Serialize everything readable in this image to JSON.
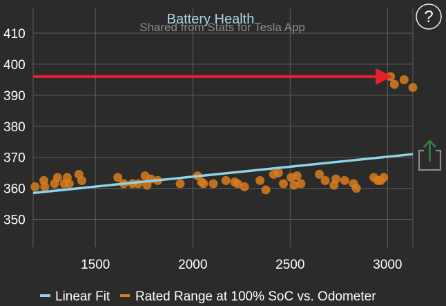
{
  "chart_data": {
    "type": "scatter",
    "title": "Battery Health",
    "subtitle": "Shared from Stats for Tesla App",
    "xlim": [
      1180,
      3130
    ],
    "ylim": [
      341,
      418
    ],
    "x_ticks": [
      1500,
      2000,
      2500,
      3000
    ],
    "y_ticks": [
      350,
      360,
      370,
      380,
      390,
      400,
      410
    ],
    "grid": true,
    "legend_position": "bottom",
    "series": [
      {
        "name": "Linear Fit",
        "type": "line",
        "color": "#8fd3e6",
        "x": [
          1180,
          3130
        ],
        "y": [
          358.5,
          371
        ]
      },
      {
        "name": "Rated Range at 100% SoC vs. Odometer",
        "type": "scatter",
        "color": "#d97d1c",
        "points": [
          [
            1190,
            360.5
          ],
          [
            1235,
            362.5
          ],
          [
            1240,
            360.5
          ],
          [
            1290,
            361.5
          ],
          [
            1305,
            363.5
          ],
          [
            1340,
            361.5
          ],
          [
            1355,
            363.5
          ],
          [
            1365,
            361.5
          ],
          [
            1415,
            364.5
          ],
          [
            1430,
            362.5
          ],
          [
            1615,
            363.5
          ],
          [
            1645,
            361.5
          ],
          [
            1690,
            361.5
          ],
          [
            1720,
            361.5
          ],
          [
            1755,
            364.0
          ],
          [
            1765,
            361.0
          ],
          [
            1785,
            363.0
          ],
          [
            1820,
            362.5
          ],
          [
            1935,
            361.5
          ],
          [
            2025,
            364.0
          ],
          [
            2045,
            362.0
          ],
          [
            2055,
            361.5
          ],
          [
            2105,
            361.5
          ],
          [
            2170,
            362.5
          ],
          [
            2215,
            362.0
          ],
          [
            2230,
            361.5
          ],
          [
            2265,
            360.5
          ],
          [
            2345,
            362.5
          ],
          [
            2375,
            359.5
          ],
          [
            2415,
            364.5
          ],
          [
            2440,
            365.0
          ],
          [
            2465,
            361.5
          ],
          [
            2505,
            363.5
          ],
          [
            2520,
            361.0
          ],
          [
            2535,
            364.0
          ],
          [
            2555,
            361.5
          ],
          [
            2650,
            364.5
          ],
          [
            2680,
            362.5
          ],
          [
            2725,
            361.0
          ],
          [
            2735,
            363.0
          ],
          [
            2780,
            362.5
          ],
          [
            2825,
            361.5
          ],
          [
            2840,
            360.0
          ],
          [
            2930,
            363.5
          ],
          [
            2950,
            362.5
          ],
          [
            2965,
            362.5
          ],
          [
            2980,
            363.5
          ],
          [
            3015,
            396.0
          ],
          [
            3035,
            393.5
          ],
          [
            3085,
            395.0
          ],
          [
            3130,
            392.5
          ]
        ]
      }
    ],
    "annotation": {
      "type": "arrow",
      "color": "#e8202a",
      "from": [
        1180,
        396
      ],
      "to": [
        3010,
        396
      ]
    }
  },
  "controls": {
    "help_label": "?",
    "share_icon": "share-icon"
  }
}
